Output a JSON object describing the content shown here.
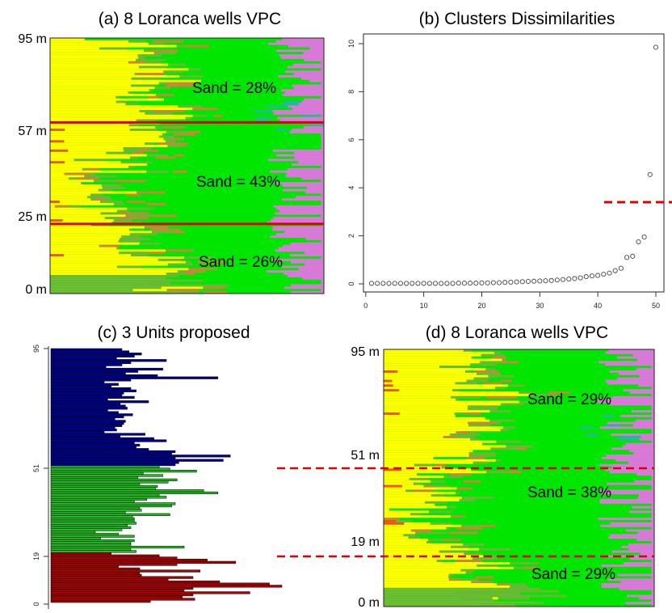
{
  "chart_data": [
    {
      "type": "heatmap",
      "title": "(a) 8 Loranca wells VPC",
      "ytick_labels": [
        "95 m",
        "57 m",
        "25 m",
        "0 m"
      ],
      "ytick_values": [
        95,
        57,
        25,
        0
      ],
      "ylim": [
        0,
        95
      ],
      "boundaries_m": [
        57,
        25
      ],
      "boundary_color": "#dd0000",
      "annotations": [
        "Sand = 28%",
        "Sand = 43%",
        "Sand = 26%"
      ],
      "annotation_depths_m": [
        78,
        41,
        11
      ],
      "facies_colors": {
        "yellow": "#ffff00",
        "green": "#00e600",
        "olive": "#66bb33",
        "brown": "#c8873a",
        "orange": "#ee5500",
        "pink": "#dd77dd",
        "teal": "#22bb99"
      }
    },
    {
      "type": "scatter",
      "title": "(b) Clusters Dissimilarities",
      "xlim": [
        0,
        52
      ],
      "ylim": [
        -0.3,
        10.3
      ],
      "xticks": [
        0,
        10,
        20,
        30,
        40,
        50
      ],
      "yticks": [
        0,
        2,
        4,
        6,
        8,
        10
      ],
      "cutoff_y": 3.4,
      "cutoff_color": "#dd0000",
      "x": [
        1,
        2,
        3,
        4,
        5,
        6,
        7,
        8,
        9,
        10,
        11,
        12,
        13,
        14,
        15,
        16,
        17,
        18,
        19,
        20,
        21,
        22,
        23,
        24,
        25,
        26,
        27,
        28,
        29,
        30,
        31,
        32,
        33,
        34,
        35,
        36,
        37,
        38,
        39,
        40,
        41,
        42,
        43,
        44,
        45,
        46,
        47,
        48,
        49,
        50
      ],
      "y": [
        0.02,
        0.02,
        0.02,
        0.02,
        0.02,
        0.02,
        0.02,
        0.02,
        0.02,
        0.02,
        0.02,
        0.02,
        0.02,
        0.02,
        0.02,
        0.03,
        0.03,
        0.03,
        0.03,
        0.04,
        0.04,
        0.05,
        0.05,
        0.06,
        0.07,
        0.08,
        0.09,
        0.1,
        0.11,
        0.12,
        0.13,
        0.14,
        0.16,
        0.18,
        0.2,
        0.22,
        0.25,
        0.3,
        0.33,
        0.35,
        0.4,
        0.45,
        0.55,
        0.65,
        1.1,
        1.15,
        1.75,
        1.95,
        4.55,
        9.85
      ]
    },
    {
      "type": "bar",
      "title": "(c) 3 Units proposed",
      "ytick_labels": [
        "95",
        "51",
        "19",
        "0"
      ],
      "ytick_values": [
        95,
        51,
        19,
        0
      ],
      "ylim": [
        0,
        95
      ],
      "units": [
        {
          "from": 51,
          "to": 95,
          "color": "#00008b"
        },
        {
          "from": 19,
          "to": 51,
          "color": "#22bb22"
        },
        {
          "from": 0,
          "to": 19,
          "color": "#aa0000"
        }
      ],
      "bars_top_to_bottom": [
        40,
        44,
        51,
        47,
        37,
        65,
        45,
        40,
        31,
        63,
        49,
        42,
        60,
        94,
        45,
        30,
        38,
        34,
        45,
        48,
        41,
        40,
        47,
        32,
        55,
        39,
        42,
        43,
        32,
        38,
        46,
        41,
        36,
        42,
        41,
        40,
        36,
        37,
        30,
        53,
        39,
        58,
        65,
        47,
        50,
        48,
        55,
        70,
        68,
        101,
        70,
        97,
        72,
        70,
        61,
        67,
        82,
        52,
        63,
        49,
        71,
        66,
        50,
        60,
        59,
        86,
        94,
        61,
        65,
        54,
        47,
        70,
        68,
        50,
        51,
        42,
        67,
        46,
        47,
        47,
        48,
        43,
        45,
        40,
        25,
        38,
        47,
        28,
        47,
        45,
        45,
        75,
        45,
        48,
        34,
        61,
        71,
        88,
        104,
        71,
        38,
        50,
        84,
        50,
        51,
        80,
        66,
        95,
        123,
        130,
        80,
        75,
        112,
        80,
        74,
        81,
        56
      ]
    },
    {
      "type": "heatmap",
      "title": "(d) 8 Loranca wells VPC",
      "ytick_labels": [
        "95 m",
        "51 m",
        "19 m",
        "0 m"
      ],
      "ytick_values": [
        95,
        51,
        19,
        0
      ],
      "ylim": [
        0,
        95
      ],
      "boundaries_m": [
        51,
        19
      ],
      "boundary_color": "#dd0000",
      "annotations": [
        "Sand = 29%",
        "Sand = 38%",
        "Sand = 29%"
      ],
      "annotation_depths_m": [
        78,
        37,
        9
      ],
      "facies_colors": {
        "yellow": "#ffff00",
        "green": "#00e600",
        "olive": "#66bb33",
        "brown": "#c8873a",
        "orange": "#ee5500",
        "pink": "#dd77dd",
        "teal": "#22bb99"
      }
    }
  ]
}
